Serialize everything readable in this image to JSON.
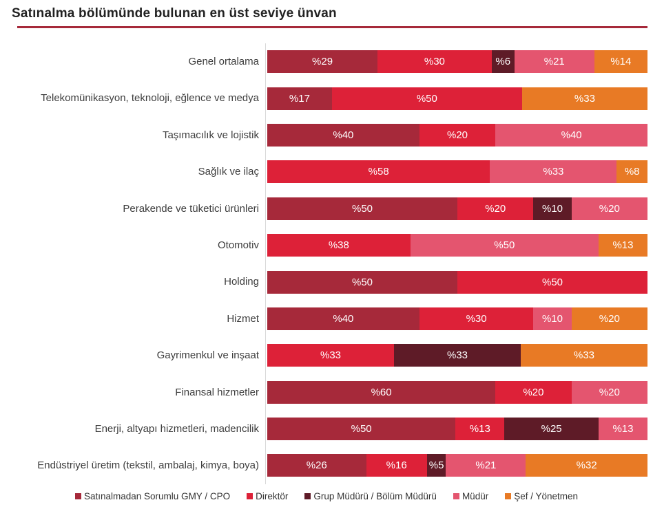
{
  "title": "Satınalma bölümünde bulunan en üst seviye ünvan",
  "accent_color": "#A6293A",
  "chart_data": {
    "type": "bar",
    "variant": "horizontal-stacked",
    "unit": "percent",
    "value_label_prefix": "%",
    "xlim": [
      0,
      100
    ],
    "grid": false,
    "legend_position": "bottom",
    "series": [
      {
        "name": "Satınalmadan Sorumlu GMY / CPO",
        "color": "#A6293A"
      },
      {
        "name": "Direktör",
        "color": "#DD2138"
      },
      {
        "name": "Grup Müdürü / Bölüm Müdürü",
        "color": "#5E1B27"
      },
      {
        "name": "Müdür",
        "color": "#E4556F"
      },
      {
        "name": "Şef / Yönetmen",
        "color": "#E87A25"
      }
    ],
    "categories": [
      "Genel ortalama",
      "Telekomünikasyon, teknoloji, eğlence ve medya",
      "Taşımacılık ve lojistik",
      "Sağlık ve ilaç",
      "Perakende ve tüketici ürünleri",
      "Otomotiv",
      "Holding",
      "Hizmet",
      "Gayrimenkul ve inşaat",
      "Finansal hizmetler",
      "Enerji, altyapı hizmetleri, madencilik",
      "Endüstriyel üretim (tekstil, ambalaj, kimya, boya)"
    ],
    "rows": [
      {
        "category": "Genel ortalama",
        "values": [
          29,
          30,
          6,
          21,
          14
        ]
      },
      {
        "category": "Telekomünikasyon, teknoloji, eğlence ve medya",
        "values": [
          17,
          50,
          0,
          0,
          33
        ]
      },
      {
        "category": "Taşımacılık ve lojistik",
        "values": [
          40,
          20,
          0,
          40,
          0
        ]
      },
      {
        "category": "Sağlık ve ilaç",
        "values": [
          0,
          58,
          0,
          33,
          8
        ]
      },
      {
        "category": "Perakende ve tüketici ürünleri",
        "values": [
          50,
          20,
          10,
          20,
          0
        ]
      },
      {
        "category": "Otomotiv",
        "values": [
          0,
          38,
          0,
          50,
          13
        ]
      },
      {
        "category": "Holding",
        "values": [
          50,
          50,
          0,
          0,
          0
        ]
      },
      {
        "category": "Hizmet",
        "values": [
          40,
          30,
          0,
          10,
          20
        ]
      },
      {
        "category": "Gayrimenkul ve inşaat",
        "values": [
          0,
          33,
          33,
          0,
          33
        ]
      },
      {
        "category": "Finansal hizmetler",
        "values": [
          60,
          20,
          0,
          20,
          0
        ]
      },
      {
        "category": "Enerji, altyapı hizmetleri, madencilik",
        "values": [
          50,
          13,
          25,
          13,
          0
        ]
      },
      {
        "category": "Endüstriyel üretim (tekstil, ambalaj, kimya, boya)",
        "values": [
          26,
          16,
          5,
          21,
          32
        ]
      }
    ]
  }
}
